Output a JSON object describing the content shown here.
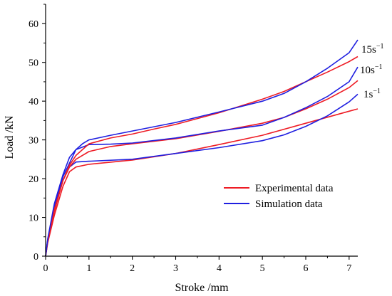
{
  "chart_data": {
    "type": "line",
    "xlabel": "Stroke /mm",
    "ylabel": "Load /kN",
    "xlim": [
      0,
      7.2
    ],
    "ylim": [
      0,
      65
    ],
    "x_ticks": [
      "0",
      "1",
      "2",
      "3",
      "4",
      "5",
      "6",
      "7"
    ],
    "y_ticks": [
      "0",
      "10",
      "20",
      "30",
      "40",
      "50",
      "60"
    ],
    "x_tick_values": [
      0,
      1,
      2,
      3,
      4,
      5,
      6,
      7
    ],
    "y_tick_values": [
      0,
      10,
      20,
      30,
      40,
      50,
      60
    ],
    "grid": false,
    "legend_position": "lower-right",
    "legend": [
      {
        "label": "Experimental data",
        "color": "#ee1c25"
      },
      {
        "label": "Simulation data",
        "color": "#1f1fe0"
      }
    ],
    "annotations": [
      {
        "text_base": "15s",
        "text_exp": "−1",
        "near_x": 7.2,
        "near_y": 53
      },
      {
        "text_base": "10s",
        "text_exp": "−1",
        "near_x": 7.2,
        "near_y": 48
      },
      {
        "text_base": "1s",
        "text_exp": "−1",
        "near_x": 7.2,
        "near_y": 42
      }
    ],
    "series": [
      {
        "kind": "experimental",
        "rate": "1s-1",
        "color": "#ee1c25",
        "x": [
          0,
          0.05,
          0.2,
          0.4,
          0.55,
          0.7,
          1.0,
          2.0,
          3.0,
          4.0,
          5.0,
          6.0,
          7.0,
          7.2
        ],
        "y": [
          0,
          3.5,
          10.5,
          18,
          21.8,
          23,
          23.7,
          24.8,
          26.5,
          28.8,
          31.2,
          34.3,
          37.4,
          38
        ]
      },
      {
        "kind": "simulation",
        "rate": "1s-1",
        "color": "#1f1fe0",
        "x": [
          0,
          0.05,
          0.2,
          0.4,
          0.55,
          0.7,
          1.0,
          2.0,
          3.0,
          4.0,
          5.0,
          5.5,
          6.0,
          6.5,
          7.0,
          7.2
        ],
        "y": [
          0,
          4,
          12,
          19.5,
          23,
          24.3,
          24.5,
          25,
          26.5,
          28,
          29.8,
          31.3,
          33.5,
          36.2,
          39.8,
          41.8
        ]
      },
      {
        "kind": "experimental",
        "rate": "10s-1",
        "color": "#ee1c25",
        "x": [
          0,
          0.05,
          0.2,
          0.4,
          0.55,
          0.7,
          1.0,
          1.5,
          2.0,
          3.0,
          4.0,
          5.0,
          5.5,
          6.0,
          6.5,
          7.0,
          7.2
        ],
        "y": [
          0,
          3.8,
          11.5,
          19.5,
          23,
          25,
          27,
          28.3,
          29,
          30.3,
          32.2,
          34.3,
          35.8,
          38,
          40.5,
          43.5,
          45.3
        ]
      },
      {
        "kind": "simulation",
        "rate": "10s-1",
        "color": "#1f1fe0",
        "x": [
          0,
          0.05,
          0.2,
          0.4,
          0.55,
          0.7,
          1.0,
          1.5,
          2.0,
          3.0,
          4.0,
          5.0,
          5.5,
          6.0,
          6.5,
          7.0,
          7.2
        ],
        "y": [
          0,
          4.2,
          12.5,
          20.5,
          24,
          27.5,
          28.8,
          28.9,
          29.2,
          30.5,
          32.3,
          33.8,
          35.8,
          38.3,
          41.2,
          45,
          48.8
        ]
      },
      {
        "kind": "experimental",
        "rate": "15s-1",
        "color": "#ee1c25",
        "x": [
          0,
          0.05,
          0.2,
          0.4,
          0.55,
          0.7,
          1.0,
          1.5,
          2.0,
          2.5,
          3.0,
          4.0,
          5.0,
          5.5,
          6.0,
          6.5,
          7.0,
          7.2
        ],
        "y": [
          0,
          4,
          12,
          19.5,
          23.5,
          26,
          29,
          30.5,
          31.5,
          32.8,
          34,
          37,
          40.5,
          42.5,
          45,
          47.5,
          50.2,
          51.5
        ]
      },
      {
        "kind": "simulation",
        "rate": "15s-1",
        "color": "#1f1fe0",
        "x": [
          0,
          0.05,
          0.2,
          0.4,
          0.55,
          0.7,
          0.85,
          1.0,
          1.5,
          2.0,
          3.0,
          4.0,
          5.0,
          5.5,
          6.0,
          6.5,
          7.0,
          7.2
        ],
        "y": [
          0,
          4.5,
          13.5,
          21,
          25.5,
          27.5,
          29,
          30,
          31.2,
          32.3,
          34.5,
          37.2,
          40,
          42,
          45,
          48.5,
          52.5,
          55.8
        ]
      }
    ]
  }
}
